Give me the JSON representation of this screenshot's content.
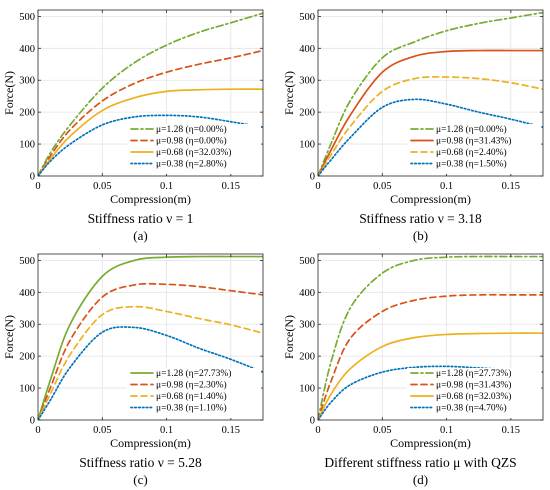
{
  "chart_data": [
    {
      "type": "line",
      "subtitle": "Stiffness ratio ν = 1",
      "panel_label": "(a)",
      "xlabel": "Compression(m)",
      "ylabel": "Force(N)",
      "xlim": [
        0,
        0.175
      ],
      "ylim": [
        0,
        520
      ],
      "xticks": [
        0,
        0.05,
        0.1,
        0.15
      ],
      "xtick_labels": [
        "0",
        "0.05",
        "0.1",
        "0.15"
      ],
      "yticks": [
        0,
        100,
        200,
        300,
        400,
        500
      ],
      "ytick_labels": [
        "0",
        "100",
        "200",
        "300",
        "400",
        "500"
      ],
      "grid": true,
      "legend": "bottom-right",
      "x": [
        0,
        0.01,
        0.025,
        0.05,
        0.075,
        0.1,
        0.125,
        0.15,
        0.175
      ],
      "series": [
        {
          "name": "μ=1.28 (η=0.00%)",
          "color": "#77ac30",
          "dash": "dashdot",
          "values": [
            0,
            75,
            160,
            275,
            355,
            410,
            450,
            480,
            510
          ]
        },
        {
          "name": "μ=0.98 (η=0.00%)",
          "color": "#d95319",
          "dash": "dashed",
          "values": [
            0,
            65,
            145,
            235,
            290,
            325,
            350,
            370,
            393
          ]
        },
        {
          "name": "μ=0.68 (η=32.03%)",
          "color": "#edb120",
          "dash": "solid",
          "values": [
            0,
            55,
            125,
            205,
            245,
            265,
            270,
            272,
            272
          ]
        },
        {
          "name": "μ=0.38 (η=2.80%)",
          "color": "#0072bd",
          "dash": "dotted",
          "values": [
            0,
            48,
            100,
            160,
            185,
            190,
            185,
            170,
            153
          ]
        }
      ]
    },
    {
      "type": "line",
      "subtitle": "Stiffness ratio ν = 3.18",
      "panel_label": "(b)",
      "xlabel": "Compression(m)",
      "ylabel": "Force(N)",
      "xlim": [
        0,
        0.175
      ],
      "ylim": [
        0,
        520
      ],
      "xticks": [
        0,
        0.05,
        0.1,
        0.15
      ],
      "xtick_labels": [
        "0",
        "0.05",
        "0.1",
        "0.15"
      ],
      "yticks": [
        0,
        100,
        200,
        300,
        400,
        500
      ],
      "ytick_labels": [
        "0",
        "100",
        "200",
        "300",
        "400",
        "500"
      ],
      "grid": true,
      "legend": "bottom-right",
      "x": [
        0,
        0.01,
        0.025,
        0.05,
        0.075,
        0.1,
        0.125,
        0.15,
        0.175
      ],
      "series": [
        {
          "name": "μ=1.28 (η=0.00%)",
          "color": "#77ac30",
          "dash": "dashdot",
          "values": [
            0,
            100,
            235,
            370,
            420,
            455,
            478,
            495,
            512
          ]
        },
        {
          "name": "μ=0.98 (η=31.43%)",
          "color": "#d95319",
          "dash": "solid",
          "values": [
            0,
            80,
            190,
            325,
            375,
            390,
            393,
            393,
            393
          ]
        },
        {
          "name": "μ=0.68 (η=2.40%)",
          "color": "#edb120",
          "dash": "dashed",
          "values": [
            0,
            65,
            155,
            265,
            305,
            310,
            305,
            292,
            272
          ]
        },
        {
          "name": "μ=0.38 (η=1.50%)",
          "color": "#0072bd",
          "dash": "dotted",
          "values": [
            0,
            50,
            120,
            215,
            240,
            225,
            200,
            178,
            153
          ]
        }
      ]
    },
    {
      "type": "line",
      "subtitle": "Stiffness ratio ν = 5.28",
      "panel_label": "(c)",
      "xlabel": "Compression(m)",
      "ylabel": "Force(N)",
      "xlim": [
        0,
        0.175
      ],
      "ylim": [
        0,
        520
      ],
      "xticks": [
        0,
        0.05,
        0.1,
        0.15
      ],
      "xtick_labels": [
        "0",
        "0.05",
        "0.1",
        "0.15"
      ],
      "yticks": [
        0,
        100,
        200,
        300,
        400,
        500
      ],
      "ytick_labels": [
        "0",
        "100",
        "200",
        "300",
        "400",
        "500"
      ],
      "grid": true,
      "legend": "bottom-right",
      "x": [
        0,
        0.01,
        0.025,
        0.05,
        0.075,
        0.1,
        0.125,
        0.15,
        0.175
      ],
      "series": [
        {
          "name": "μ=1.28 (η=27.73%)",
          "color": "#77ac30",
          "dash": "solid",
          "values": [
            0,
            130,
            300,
            450,
            500,
            510,
            512,
            512,
            512
          ]
        },
        {
          "name": "μ=0.98 (η=2.30%)",
          "color": "#d95319",
          "dash": "dashed",
          "values": [
            0,
            105,
            250,
            385,
            423,
            425,
            418,
            405,
            392
          ]
        },
        {
          "name": "μ=0.68 (η=1.40%)",
          "color": "#edb120",
          "dash": "dashed",
          "values": [
            0,
            85,
            205,
            330,
            355,
            340,
            318,
            298,
            272
          ]
        },
        {
          "name": "μ=0.38 (η=1.10%)",
          "color": "#0072bd",
          "dash": "dotted",
          "values": [
            0,
            65,
            165,
            275,
            290,
            265,
            225,
            190,
            150
          ]
        }
      ]
    },
    {
      "type": "line",
      "subtitle": "Different stiffness ratio μ with QZS",
      "panel_label": "(d)",
      "xlabel": "Compression(m)",
      "ylabel": "Force(N)",
      "xlim": [
        0,
        0.175
      ],
      "ylim": [
        0,
        520
      ],
      "xticks": [
        0,
        0.05,
        0.1,
        0.15
      ],
      "xtick_labels": [
        "0",
        "0.05",
        "0.1",
        "0.15"
      ],
      "yticks": [
        0,
        100,
        200,
        300,
        400,
        500
      ],
      "ytick_labels": [
        "0",
        "100",
        "200",
        "300",
        "400",
        "500"
      ],
      "grid": true,
      "legend": "bottom-right",
      "x": [
        0,
        0.01,
        0.025,
        0.05,
        0.075,
        0.1,
        0.125,
        0.15,
        0.175
      ],
      "series": [
        {
          "name": "μ=1.28 (η=27.73%)",
          "color": "#77ac30",
          "dash": "dashdot",
          "values": [
            0,
            180,
            350,
            460,
            500,
            510,
            512,
            512,
            512
          ]
        },
        {
          "name": "μ=0.98 (η=31.43%)",
          "color": "#d95319",
          "dash": "dashed",
          "values": [
            0,
            120,
            255,
            340,
            375,
            388,
            392,
            392,
            392
          ]
        },
        {
          "name": "μ=0.68 (η=32.03%)",
          "color": "#edb120",
          "dash": "solid",
          "values": [
            0,
            80,
            160,
            230,
            258,
            268,
            271,
            272,
            272
          ]
        },
        {
          "name": "μ=0.38 (η=4.70%)",
          "color": "#0072bd",
          "dash": "dotted",
          "values": [
            0,
            55,
            110,
            150,
            165,
            168,
            163,
            157,
            150
          ]
        }
      ]
    }
  ]
}
